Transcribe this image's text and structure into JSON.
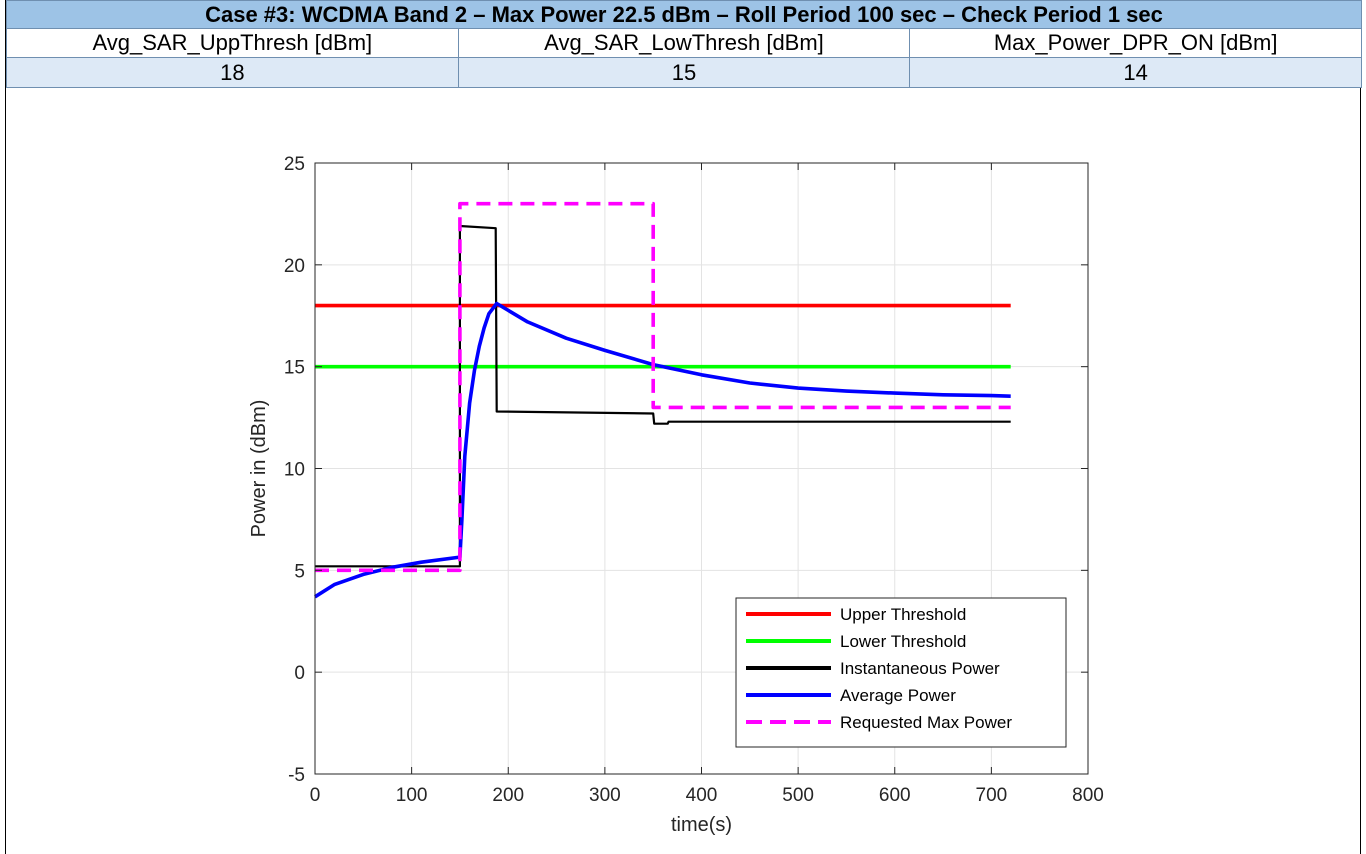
{
  "table": {
    "title": "Case #3: WCDMA Band 2 – Max Power 22.5 dBm – Roll Period 100 sec – Check Period 1 sec",
    "headers": [
      "Avg_SAR_UppThresh [dBm]",
      "Avg_SAR_LowThresh [dBm]",
      "Max_Power_DPR_ON [dBm]"
    ],
    "values": [
      "18",
      "15",
      "14"
    ]
  },
  "chart_data": {
    "type": "line",
    "title": "",
    "xlabel": "time(s)",
    "ylabel": "Power in (dBm)",
    "xlim": [
      0,
      800
    ],
    "ylim": [
      -5,
      25
    ],
    "xticks": [
      0,
      100,
      200,
      300,
      400,
      500,
      600,
      700,
      800
    ],
    "yticks": [
      -5,
      0,
      5,
      10,
      15,
      20,
      25
    ],
    "grid": true,
    "legend_position": "bottom-right",
    "series": [
      {
        "name": "Upper Threshold",
        "color": "#ff0000",
        "style": "solid",
        "x": [
          0,
          720
        ],
        "y": [
          18,
          18
        ]
      },
      {
        "name": "Lower Threshold",
        "color": "#00ff00",
        "style": "solid",
        "x": [
          0,
          720
        ],
        "y": [
          15,
          15
        ]
      },
      {
        "name": "Instantaneous Power",
        "color": "#000000",
        "style": "solid",
        "x": [
          0,
          150,
          150,
          152,
          187,
          188,
          350,
          351,
          365,
          366,
          720
        ],
        "y": [
          5.2,
          5.2,
          21.9,
          21.9,
          21.8,
          12.8,
          12.7,
          12.2,
          12.2,
          12.3,
          12.3
        ]
      },
      {
        "name": "Average Power",
        "color": "#0000ff",
        "style": "solid",
        "x": [
          0,
          20,
          50,
          80,
          110,
          150,
          152,
          155,
          160,
          165,
          170,
          175,
          180,
          188,
          220,
          260,
          300,
          350,
          400,
          450,
          500,
          550,
          600,
          650,
          700,
          720
        ],
        "y": [
          3.7,
          4.3,
          4.8,
          5.15,
          5.4,
          5.65,
          7.5,
          10.6,
          13.2,
          14.8,
          16.0,
          16.9,
          17.6,
          18.1,
          17.2,
          16.4,
          15.8,
          15.1,
          14.6,
          14.2,
          13.95,
          13.8,
          13.7,
          13.62,
          13.58,
          13.55
        ]
      },
      {
        "name": "Requested Max Power",
        "color": "#ff00ff",
        "style": "dashed",
        "x": [
          0,
          150,
          150,
          350,
          350,
          720
        ],
        "y": [
          5.0,
          5.0,
          23.0,
          23.0,
          13.0,
          13.0
        ]
      }
    ]
  }
}
